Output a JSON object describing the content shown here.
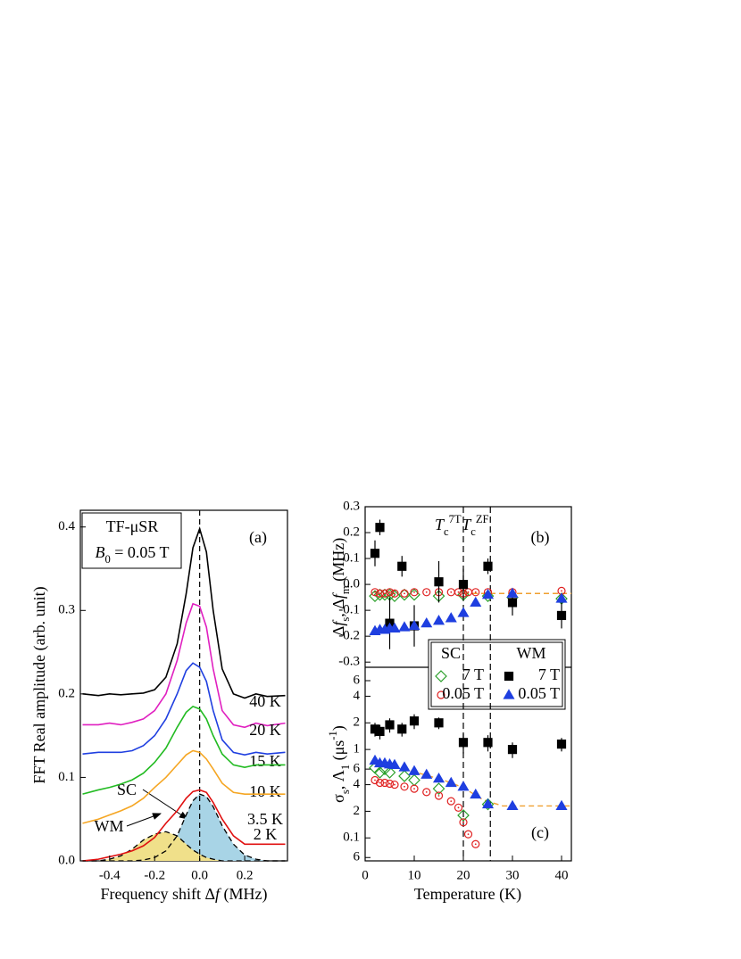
{
  "chart_data": [
    {
      "type": "line",
      "panel_label": "(a)",
      "annotations": [
        "TF-μSR"
      ],
      "field_label": [
        [
          "B",
          "i"
        ],
        [
          "0",
          "sub"
        ],
        [
          " = 0.05 T",
          ""
        ]
      ],
      "xlabel": [
        [
          "Frequency shift Δ",
          ""
        ],
        [
          "f",
          "i"
        ],
        [
          " (MHz)",
          ""
        ]
      ],
      "ylabel": [
        [
          "FFT Real amplitude (arb. unit)",
          ""
        ]
      ],
      "xlim": [
        -0.53,
        0.39
      ],
      "ylim": [
        0,
        0.42
      ],
      "xticks": [
        -0.4,
        -0.2,
        {
          "value": 0,
          "label": "0.0"
        },
        0.2
      ],
      "yticks": [
        {
          "value": 0,
          "label": "0.0"
        },
        0.1,
        0.2,
        0.3,
        0.4
      ],
      "vline": 0,
      "x": [
        -0.52,
        -0.45,
        -0.4,
        -0.35,
        -0.3,
        -0.25,
        -0.2,
        -0.15,
        -0.1,
        -0.06,
        -0.03,
        0,
        0.03,
        0.06,
        0.1,
        0.15,
        0.2,
        0.25,
        0.3,
        0.38
      ],
      "series": [
        {
          "name": "SC",
          "color": "#000000",
          "dash": true,
          "fill": "#a8d4e6",
          "values": [
            0,
            0,
            0,
            0,
            0,
            0.001,
            0.004,
            0.012,
            0.03,
            0.055,
            0.072,
            0.08,
            0.077,
            0.065,
            0.042,
            0.02,
            0.007,
            0.002,
            0,
            0
          ]
        },
        {
          "name": "WM",
          "color": "#000000",
          "dash": true,
          "fill": "#f0e08a",
          "values": [
            0,
            0,
            0.002,
            0.006,
            0.014,
            0.025,
            0.032,
            0.035,
            0.03,
            0.02,
            0.013,
            0.008,
            0.004,
            0.002,
            0,
            0,
            0,
            0,
            0,
            0
          ]
        },
        {
          "name": "40 K",
          "color": "#000000",
          "values": [
            0.2,
            0.198,
            0.2,
            0.199,
            0.2,
            0.201,
            0.205,
            0.22,
            0.26,
            0.32,
            0.375,
            0.398,
            0.37,
            0.3,
            0.23,
            0.2,
            0.195,
            0.2,
            0.197,
            0.198
          ]
        },
        {
          "name": "20 K",
          "color": "#e020c0",
          "values": [
            0.163,
            0.163,
            0.165,
            0.163,
            0.166,
            0.17,
            0.18,
            0.2,
            0.24,
            0.285,
            0.308,
            0.305,
            0.28,
            0.23,
            0.18,
            0.163,
            0.16,
            0.165,
            0.162,
            0.165
          ]
        },
        {
          "name": "15 K",
          "color": "#1f3fe0",
          "values": [
            0.128,
            0.13,
            0.13,
            0.13,
            0.132,
            0.138,
            0.15,
            0.17,
            0.2,
            0.228,
            0.237,
            0.232,
            0.215,
            0.18,
            0.145,
            0.13,
            0.127,
            0.13,
            0.128,
            0.13
          ]
        },
        {
          "name": "10 K",
          "color": "#22bb22",
          "values": [
            0.08,
            0.085,
            0.088,
            0.092,
            0.097,
            0.105,
            0.118,
            0.135,
            0.16,
            0.178,
            0.185,
            0.182,
            0.17,
            0.15,
            0.128,
            0.115,
            0.112,
            0.115,
            0.115,
            0.115
          ]
        },
        {
          "name": "3.5 K",
          "color": "#f5a623",
          "values": [
            0.045,
            0.05,
            0.055,
            0.06,
            0.066,
            0.075,
            0.088,
            0.1,
            0.115,
            0.127,
            0.132,
            0.13,
            0.122,
            0.11,
            0.093,
            0.082,
            0.08,
            0.08,
            0.08,
            0.08
          ]
        },
        {
          "name": "2 K",
          "color": "#e01010",
          "values": [
            0,
            0.002,
            0.005,
            0.008,
            0.012,
            0.018,
            0.028,
            0.045,
            0.06,
            0.075,
            0.083,
            0.085,
            0.082,
            0.07,
            0.05,
            0.03,
            0.02,
            0.02,
            0.02,
            0.02
          ]
        }
      ]
    },
    {
      "type": "scatter",
      "panel_label": "(b)",
      "ylabel": [
        [
          "Δ",
          ""
        ],
        [
          "f",
          "i"
        ],
        [
          "s",
          "sub"
        ],
        [
          ", Δ",
          ""
        ],
        [
          "f",
          "i"
        ],
        [
          "m",
          "sub"
        ],
        [
          " (MHz)",
          ""
        ]
      ],
      "xlim": [
        0,
        42
      ],
      "ylim": [
        -0.32,
        0.3
      ],
      "yticks": [
        0.3,
        0.2,
        0.1,
        {
          "value": 0,
          "label": "0.0"
        },
        -0.1,
        -0.2,
        -0.3
      ],
      "vlines": [
        20,
        25.5
      ],
      "vline_labels": [
        [
          [
            "T",
            "i"
          ],
          [
            "c",
            "sub"
          ],
          [
            "7T",
            "sup"
          ]
        ],
        [
          [
            "T",
            "i"
          ],
          [
            "c",
            "sub"
          ],
          [
            "ZF",
            "sup"
          ]
        ]
      ],
      "legend": "lower right",
      "legend_groups": [
        "SC",
        "WM"
      ],
      "fit": {
        "color": "#f0a030",
        "x": [
          20,
          42
        ],
        "values": [
          -0.035,
          -0.035
        ]
      },
      "series": [
        {
          "name": "7 T",
          "group": 0,
          "marker": "diamond",
          "filled": false,
          "color": "#2ca02c",
          "x": [
            2,
            3,
            4,
            5,
            6,
            8,
            10,
            15,
            20,
            25,
            30,
            40
          ],
          "values": [
            -0.045,
            -0.04,
            -0.04,
            -0.04,
            -0.045,
            -0.04,
            -0.04,
            -0.045,
            -0.04,
            -0.045,
            -0.05,
            -0.055
          ]
        },
        {
          "name": "0.05 T",
          "group": 0,
          "marker": "circle",
          "filled": false,
          "color": "#e02020",
          "x": [
            2,
            3,
            4,
            5,
            6,
            8,
            10,
            12.5,
            15,
            17.5,
            19,
            20,
            21,
            22.5,
            25,
            30,
            40
          ],
          "values": [
            -0.03,
            -0.035,
            -0.035,
            -0.03,
            -0.035,
            -0.035,
            -0.03,
            -0.03,
            -0.03,
            -0.03,
            -0.03,
            -0.035,
            -0.03,
            -0.03,
            -0.03,
            -0.03,
            -0.025
          ]
        },
        {
          "name": "7 T",
          "group": 1,
          "marker": "square",
          "filled": true,
          "color": "#000000",
          "x": [
            2,
            3,
            5,
            7.5,
            10,
            15,
            20,
            25,
            30,
            40
          ],
          "values": [
            0.12,
            0.22,
            -0.15,
            0.07,
            -0.16,
            0.01,
            0.0,
            0.07,
            -0.07,
            -0.12
          ],
          "errors": [
            0.05,
            0.03,
            0.1,
            0.04,
            0.08,
            0.08,
            0.06,
            0.03,
            0.05,
            0.05
          ]
        },
        {
          "name": "0.05 T",
          "group": 1,
          "marker": "triangle",
          "filled": true,
          "color": "#1f3fe0",
          "x": [
            2,
            3,
            4,
            5,
            6,
            8,
            10,
            12.5,
            15,
            17.5,
            20,
            22.5,
            25,
            30,
            40
          ],
          "values": [
            -0.18,
            -0.175,
            -0.175,
            -0.17,
            -0.17,
            -0.165,
            -0.16,
            -0.15,
            -0.14,
            -0.13,
            -0.11,
            -0.07,
            -0.04,
            -0.035,
            -0.055
          ]
        }
      ]
    },
    {
      "type": "scatter",
      "panel_label": "(c)",
      "log": true,
      "xlabel": [
        [
          "Temperature (K)",
          ""
        ]
      ],
      "ylabel": [
        [
          "σ",
          ""
        ],
        [
          "s",
          "sub"
        ],
        [
          ", Λ",
          ""
        ],
        [
          "1",
          "sub"
        ],
        [
          " (μs",
          ""
        ],
        [
          "-1",
          "sup"
        ],
        [
          ")",
          ""
        ]
      ],
      "xlim": [
        0,
        42
      ],
      "ylim": [
        0.055,
        8.5
      ],
      "xticks": [
        0,
        10,
        20,
        30,
        40
      ],
      "yticks": [
        {
          "value": 0.06,
          "label": "6"
        },
        0.1,
        {
          "value": 0.2,
          "label": "2"
        },
        {
          "value": 0.4,
          "label": "4"
        },
        {
          "value": 0.6,
          "label": "6"
        },
        1,
        2,
        4,
        6
      ],
      "fit": {
        "color": "#f0a030",
        "x": [
          4,
          8,
          12,
          16,
          20,
          24,
          28,
          42
        ],
        "values": [
          0.68,
          0.6,
          0.52,
          0.45,
          0.37,
          0.27,
          0.23,
          0.23
        ]
      },
      "series": [
        {
          "marker": "diamond",
          "filled": false,
          "color": "#2ca02c",
          "x": [
            2,
            3,
            4,
            5,
            8,
            10,
            15,
            20,
            25
          ],
          "values": [
            0.62,
            0.55,
            0.6,
            0.55,
            0.5,
            0.45,
            0.36,
            0.18,
            0.24
          ]
        },
        {
          "marker": "circle",
          "filled": false,
          "color": "#e02020",
          "x": [
            2,
            3,
            4,
            5,
            6,
            8,
            10,
            12.5,
            15,
            17.5,
            19,
            20,
            21,
            22.5
          ],
          "values": [
            0.45,
            0.42,
            0.42,
            0.41,
            0.4,
            0.38,
            0.36,
            0.33,
            0.3,
            0.26,
            0.22,
            0.15,
            0.11,
            0.085
          ]
        },
        {
          "marker": "square",
          "filled": true,
          "color": "#000000",
          "x": [
            2,
            3,
            5,
            7.5,
            10,
            15,
            20,
            25,
            30,
            40
          ],
          "values": [
            1.7,
            1.6,
            1.9,
            1.7,
            2.1,
            2.0,
            1.2,
            1.2,
            1.0,
            1.15
          ],
          "errors": [
            0.3,
            0.3,
            0.35,
            0.3,
            0.4,
            0.3,
            0.3,
            0.25,
            0.2,
            0.2
          ]
        },
        {
          "marker": "triangle",
          "filled": true,
          "color": "#1f3fe0",
          "x": [
            2,
            3,
            4,
            5,
            6,
            8,
            10,
            12.5,
            15,
            17.5,
            20,
            22.5,
            25,
            30,
            40
          ],
          "values": [
            0.75,
            0.7,
            0.7,
            0.68,
            0.67,
            0.63,
            0.57,
            0.52,
            0.47,
            0.42,
            0.38,
            0.31,
            0.24,
            0.23,
            0.23
          ]
        }
      ]
    }
  ]
}
